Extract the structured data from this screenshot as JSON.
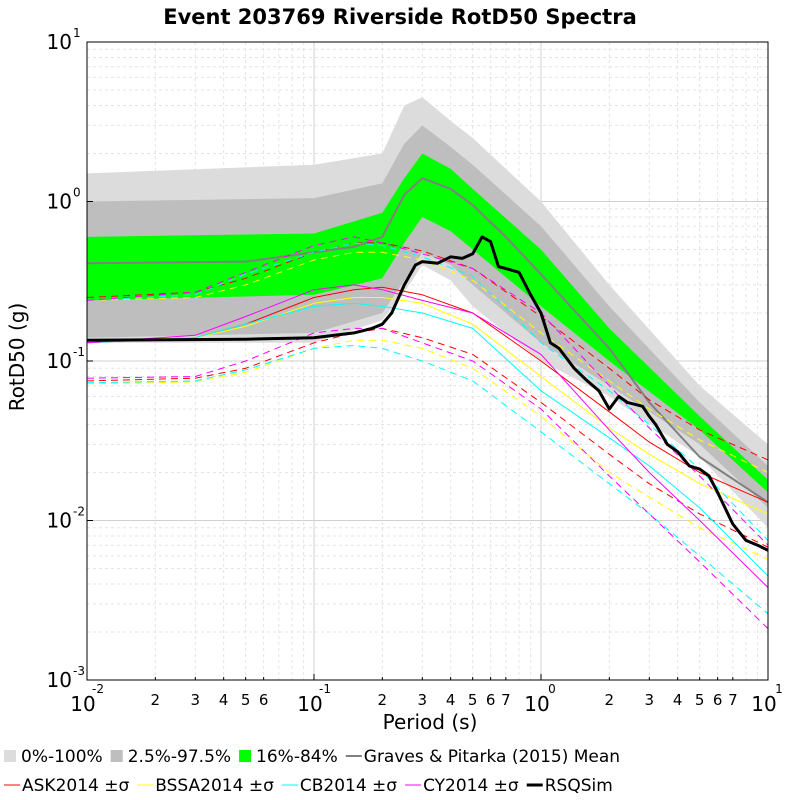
{
  "chart_data": {
    "type": "line",
    "title": "Event 203769 Riverside RotD50 Spectra",
    "xlabel": "Period (s)",
    "ylabel": "RotD50 (g)",
    "x_scale": "log",
    "y_scale": "log",
    "xlim": [
      0.01,
      10
    ],
    "ylim": [
      0.001,
      10
    ],
    "grid": true,
    "legend_position": "bottom",
    "x_ticks": [
      {
        "base": "10",
        "exp": "-2",
        "value": 0.01
      },
      {
        "base": "10",
        "exp": "-1",
        "value": 0.1
      },
      {
        "base": "10",
        "exp": "0",
        "value": 1
      },
      {
        "base": "10",
        "exp": "1",
        "value": 10
      }
    ],
    "x_minor_labels": [
      {
        "label": "2",
        "value": 0.02
      },
      {
        "label": "3",
        "value": 0.03
      },
      {
        "label": "4",
        "value": 0.04
      },
      {
        "label": "5",
        "value": 0.05
      },
      {
        "label": "6",
        "value": 0.06
      },
      {
        "label": "2",
        "value": 0.2
      },
      {
        "label": "3",
        "value": 0.3
      },
      {
        "label": "4",
        "value": 0.4
      },
      {
        "label": "5",
        "value": 0.5
      },
      {
        "label": "6",
        "value": 0.6
      },
      {
        "label": "7",
        "value": 0.7
      },
      {
        "label": "2",
        "value": 2
      },
      {
        "label": "3",
        "value": 3
      },
      {
        "label": "4",
        "value": 4
      },
      {
        "label": "5",
        "value": 5
      },
      {
        "label": "6",
        "value": 6
      },
      {
        "label": "7",
        "value": 7
      }
    ],
    "y_ticks": [
      {
        "base": "10",
        "exp": "-3",
        "value": 0.001
      },
      {
        "base": "10",
        "exp": "-2",
        "value": 0.01
      },
      {
        "base": "10",
        "exp": "-1",
        "value": 0.1
      },
      {
        "base": "10",
        "exp": "0",
        "value": 1
      },
      {
        "base": "10",
        "exp": "1",
        "value": 10
      }
    ],
    "bands": [
      {
        "name": "0%-100%",
        "color": "#dcdcdc",
        "x": [
          0.01,
          0.1,
          0.2,
          0.25,
          0.3,
          0.4,
          0.5,
          1,
          2,
          5,
          10
        ],
        "lower": [
          0.13,
          0.13,
          0.18,
          0.27,
          0.4,
          0.32,
          0.22,
          0.1,
          0.06,
          0.025,
          0.009
        ],
        "upper": [
          1.5,
          1.7,
          2.0,
          4.0,
          4.5,
          3.2,
          2.5,
          1.0,
          0.3,
          0.07,
          0.03
        ]
      },
      {
        "name": "2.5%-97.5%",
        "color": "#bebebe",
        "x": [
          0.01,
          0.1,
          0.2,
          0.25,
          0.3,
          0.4,
          0.5,
          1,
          2,
          5,
          10
        ],
        "lower": [
          0.14,
          0.15,
          0.2,
          0.32,
          0.48,
          0.4,
          0.3,
          0.13,
          0.07,
          0.03,
          0.012
        ],
        "upper": [
          1.0,
          1.05,
          1.3,
          2.3,
          3.0,
          2.2,
          1.7,
          0.7,
          0.22,
          0.055,
          0.022
        ]
      },
      {
        "name": "16%-84%",
        "color": "#00ff00",
        "x": [
          0.01,
          0.1,
          0.2,
          0.25,
          0.3,
          0.4,
          0.5,
          1,
          2,
          5,
          10
        ],
        "lower": [
          0.24,
          0.26,
          0.33,
          0.55,
          0.8,
          0.65,
          0.5,
          0.22,
          0.1,
          0.037,
          0.015
        ],
        "upper": [
          0.6,
          0.63,
          0.85,
          1.4,
          2.0,
          1.6,
          1.2,
          0.5,
          0.16,
          0.045,
          0.018
        ]
      }
    ],
    "series": [
      {
        "name": "Graves & Pitarka (2015) Mean",
        "color": "#808080",
        "dash": "solid",
        "width": 2,
        "x": [
          0.01,
          0.05,
          0.1,
          0.15,
          0.2,
          0.25,
          0.3,
          0.4,
          0.5,
          0.7,
          1,
          2,
          3,
          5,
          10
        ],
        "y": [
          0.41,
          0.42,
          0.48,
          0.52,
          0.6,
          1.1,
          1.4,
          1.2,
          0.95,
          0.6,
          0.35,
          0.12,
          0.055,
          0.025,
          0.013
        ]
      },
      {
        "name": "ASK2014",
        "color": "#ff0000",
        "dash": "solid",
        "width": 1,
        "x": [
          0.01,
          0.03,
          0.05,
          0.1,
          0.15,
          0.2,
          0.3,
          0.5,
          1,
          2,
          3,
          5,
          10
        ],
        "y": [
          0.13,
          0.14,
          0.17,
          0.25,
          0.28,
          0.29,
          0.26,
          0.2,
          0.1,
          0.048,
          0.031,
          0.02,
          0.013
        ]
      },
      {
        "name": "ASK2014 +σ",
        "color": "#ff0000",
        "dash": "dashed",
        "width": 1,
        "x": [
          0.01,
          0.03,
          0.05,
          0.1,
          0.15,
          0.2,
          0.3,
          0.5,
          1,
          2,
          3,
          5,
          10
        ],
        "y": [
          0.25,
          0.27,
          0.33,
          0.48,
          0.55,
          0.55,
          0.49,
          0.38,
          0.19,
          0.09,
          0.057,
          0.037,
          0.024
        ]
      },
      {
        "name": "ASK2014 -σ",
        "color": "#ff0000",
        "dash": "dashed",
        "width": 1,
        "x": [
          0.01,
          0.03,
          0.05,
          0.1,
          0.15,
          0.2,
          0.3,
          0.5,
          1,
          2,
          3,
          5,
          10
        ],
        "y": [
          0.075,
          0.078,
          0.09,
          0.13,
          0.15,
          0.16,
          0.14,
          0.11,
          0.055,
          0.026,
          0.017,
          0.011,
          0.0068
        ]
      },
      {
        "name": "BSSA2014",
        "color": "#ffff00",
        "dash": "solid",
        "width": 1,
        "x": [
          0.01,
          0.03,
          0.05,
          0.1,
          0.15,
          0.2,
          0.3,
          0.5,
          1,
          2,
          3,
          5,
          10
        ],
        "y": [
          0.135,
          0.14,
          0.165,
          0.23,
          0.25,
          0.25,
          0.23,
          0.17,
          0.08,
          0.038,
          0.026,
          0.017,
          0.011
        ]
      },
      {
        "name": "BSSA2014 +σ",
        "color": "#ffff00",
        "dash": "dashed",
        "width": 1,
        "x": [
          0.01,
          0.03,
          0.05,
          0.1,
          0.15,
          0.2,
          0.3,
          0.5,
          1,
          2,
          3,
          5,
          10
        ],
        "y": [
          0.24,
          0.25,
          0.3,
          0.43,
          0.48,
          0.48,
          0.43,
          0.32,
          0.15,
          0.075,
          0.05,
          0.032,
          0.02
        ]
      },
      {
        "name": "BSSA2014 -σ",
        "color": "#ffff00",
        "dash": "dashed",
        "width": 1,
        "x": [
          0.01,
          0.03,
          0.05,
          0.1,
          0.15,
          0.2,
          0.3,
          0.5,
          1,
          2,
          3,
          5,
          10
        ],
        "y": [
          0.072,
          0.074,
          0.085,
          0.12,
          0.135,
          0.135,
          0.12,
          0.09,
          0.045,
          0.02,
          0.014,
          0.009,
          0.0057
        ]
      },
      {
        "name": "CB2014",
        "color": "#00ffff",
        "dash": "solid",
        "width": 1,
        "x": [
          0.01,
          0.03,
          0.05,
          0.1,
          0.15,
          0.2,
          0.3,
          0.5,
          1,
          2,
          3,
          5,
          10
        ],
        "y": [
          0.13,
          0.14,
          0.17,
          0.22,
          0.23,
          0.22,
          0.2,
          0.16,
          0.065,
          0.033,
          0.022,
          0.012,
          0.0045
        ]
      },
      {
        "name": "CB2014 +σ",
        "color": "#00ffff",
        "dash": "dashed",
        "width": 1,
        "x": [
          0.01,
          0.03,
          0.05,
          0.1,
          0.15,
          0.2,
          0.3,
          0.5,
          1,
          2,
          3,
          5,
          10
        ],
        "y": [
          0.24,
          0.26,
          0.35,
          0.48,
          0.55,
          0.53,
          0.45,
          0.34,
          0.13,
          0.065,
          0.04,
          0.021,
          0.0075
        ]
      },
      {
        "name": "CB2014 -σ",
        "color": "#00ffff",
        "dash": "dashed",
        "width": 1,
        "x": [
          0.01,
          0.03,
          0.05,
          0.1,
          0.15,
          0.2,
          0.3,
          0.5,
          1,
          2,
          3,
          5,
          10
        ],
        "y": [
          0.073,
          0.075,
          0.088,
          0.12,
          0.125,
          0.12,
          0.1,
          0.075,
          0.036,
          0.017,
          0.011,
          0.006,
          0.0026
        ]
      },
      {
        "name": "CY2014",
        "color": "#ff00ff",
        "dash": "solid",
        "width": 1,
        "x": [
          0.01,
          0.03,
          0.05,
          0.1,
          0.15,
          0.2,
          0.3,
          0.5,
          1,
          2,
          3,
          5,
          10
        ],
        "y": [
          0.13,
          0.145,
          0.19,
          0.28,
          0.3,
          0.28,
          0.24,
          0.2,
          0.11,
          0.037,
          0.02,
          0.01,
          0.0038
        ]
      },
      {
        "name": "CY2014 +σ",
        "color": "#ff00ff",
        "dash": "dashed",
        "width": 1,
        "x": [
          0.01,
          0.03,
          0.05,
          0.1,
          0.15,
          0.2,
          0.3,
          0.5,
          1,
          2,
          3,
          5,
          10
        ],
        "y": [
          0.24,
          0.27,
          0.36,
          0.53,
          0.6,
          0.55,
          0.47,
          0.38,
          0.2,
          0.07,
          0.038,
          0.019,
          0.007
        ]
      },
      {
        "name": "CY2014 -σ",
        "color": "#ff00ff",
        "dash": "dashed",
        "width": 1,
        "x": [
          0.01,
          0.03,
          0.05,
          0.1,
          0.15,
          0.2,
          0.3,
          0.5,
          1,
          2,
          3,
          5,
          10
        ],
        "y": [
          0.078,
          0.08,
          0.1,
          0.15,
          0.16,
          0.16,
          0.13,
          0.1,
          0.05,
          0.019,
          0.011,
          0.0055,
          0.0021
        ]
      },
      {
        "name": "RSQSim",
        "color": "#000000",
        "dash": "solid",
        "width": 3,
        "x": [
          0.01,
          0.05,
          0.1,
          0.15,
          0.18,
          0.2,
          0.22,
          0.25,
          0.28,
          0.3,
          0.35,
          0.4,
          0.45,
          0.5,
          0.55,
          0.6,
          0.65,
          0.7,
          0.8,
          0.9,
          1,
          1.1,
          1.2,
          1.4,
          1.6,
          1.8,
          2,
          2.2,
          2.4,
          2.8,
          3,
          3.2,
          3.6,
          4,
          4.5,
          5,
          5.5,
          6,
          7,
          8,
          9,
          10
        ],
        "y": [
          0.135,
          0.137,
          0.14,
          0.15,
          0.16,
          0.17,
          0.2,
          0.3,
          0.4,
          0.42,
          0.41,
          0.45,
          0.44,
          0.47,
          0.6,
          0.56,
          0.39,
          0.38,
          0.36,
          0.26,
          0.2,
          0.13,
          0.12,
          0.09,
          0.075,
          0.065,
          0.05,
          0.06,
          0.055,
          0.052,
          0.045,
          0.04,
          0.03,
          0.027,
          0.022,
          0.021,
          0.019,
          0.015,
          0.0095,
          0.0075,
          0.007,
          0.0065
        ]
      }
    ],
    "legend": {
      "row1": [
        {
          "label": "0%-100%",
          "color": "#dcdcdc",
          "kind": "box"
        },
        {
          "label": "2.5%-97.5%",
          "color": "#bebebe",
          "kind": "box"
        },
        {
          "label": "16%-84%",
          "color": "#00ff00",
          "kind": "box"
        },
        {
          "label": "Graves & Pitarka (2015) Mean",
          "color": "#808080",
          "kind": "line2"
        }
      ],
      "row2": [
        {
          "label": "ASK2014 ±σ",
          "color": "#ff0000",
          "kind": "line1"
        },
        {
          "label": "BSSA2014 ±σ",
          "color": "#ffff00",
          "kind": "line1"
        },
        {
          "label": "CB2014 ±σ",
          "color": "#00ffff",
          "kind": "line1"
        },
        {
          "label": "CY2014 ±σ",
          "color": "#ff00ff",
          "kind": "line1"
        },
        {
          "label": "RSQSim",
          "color": "#000000",
          "kind": "line3"
        }
      ]
    }
  }
}
